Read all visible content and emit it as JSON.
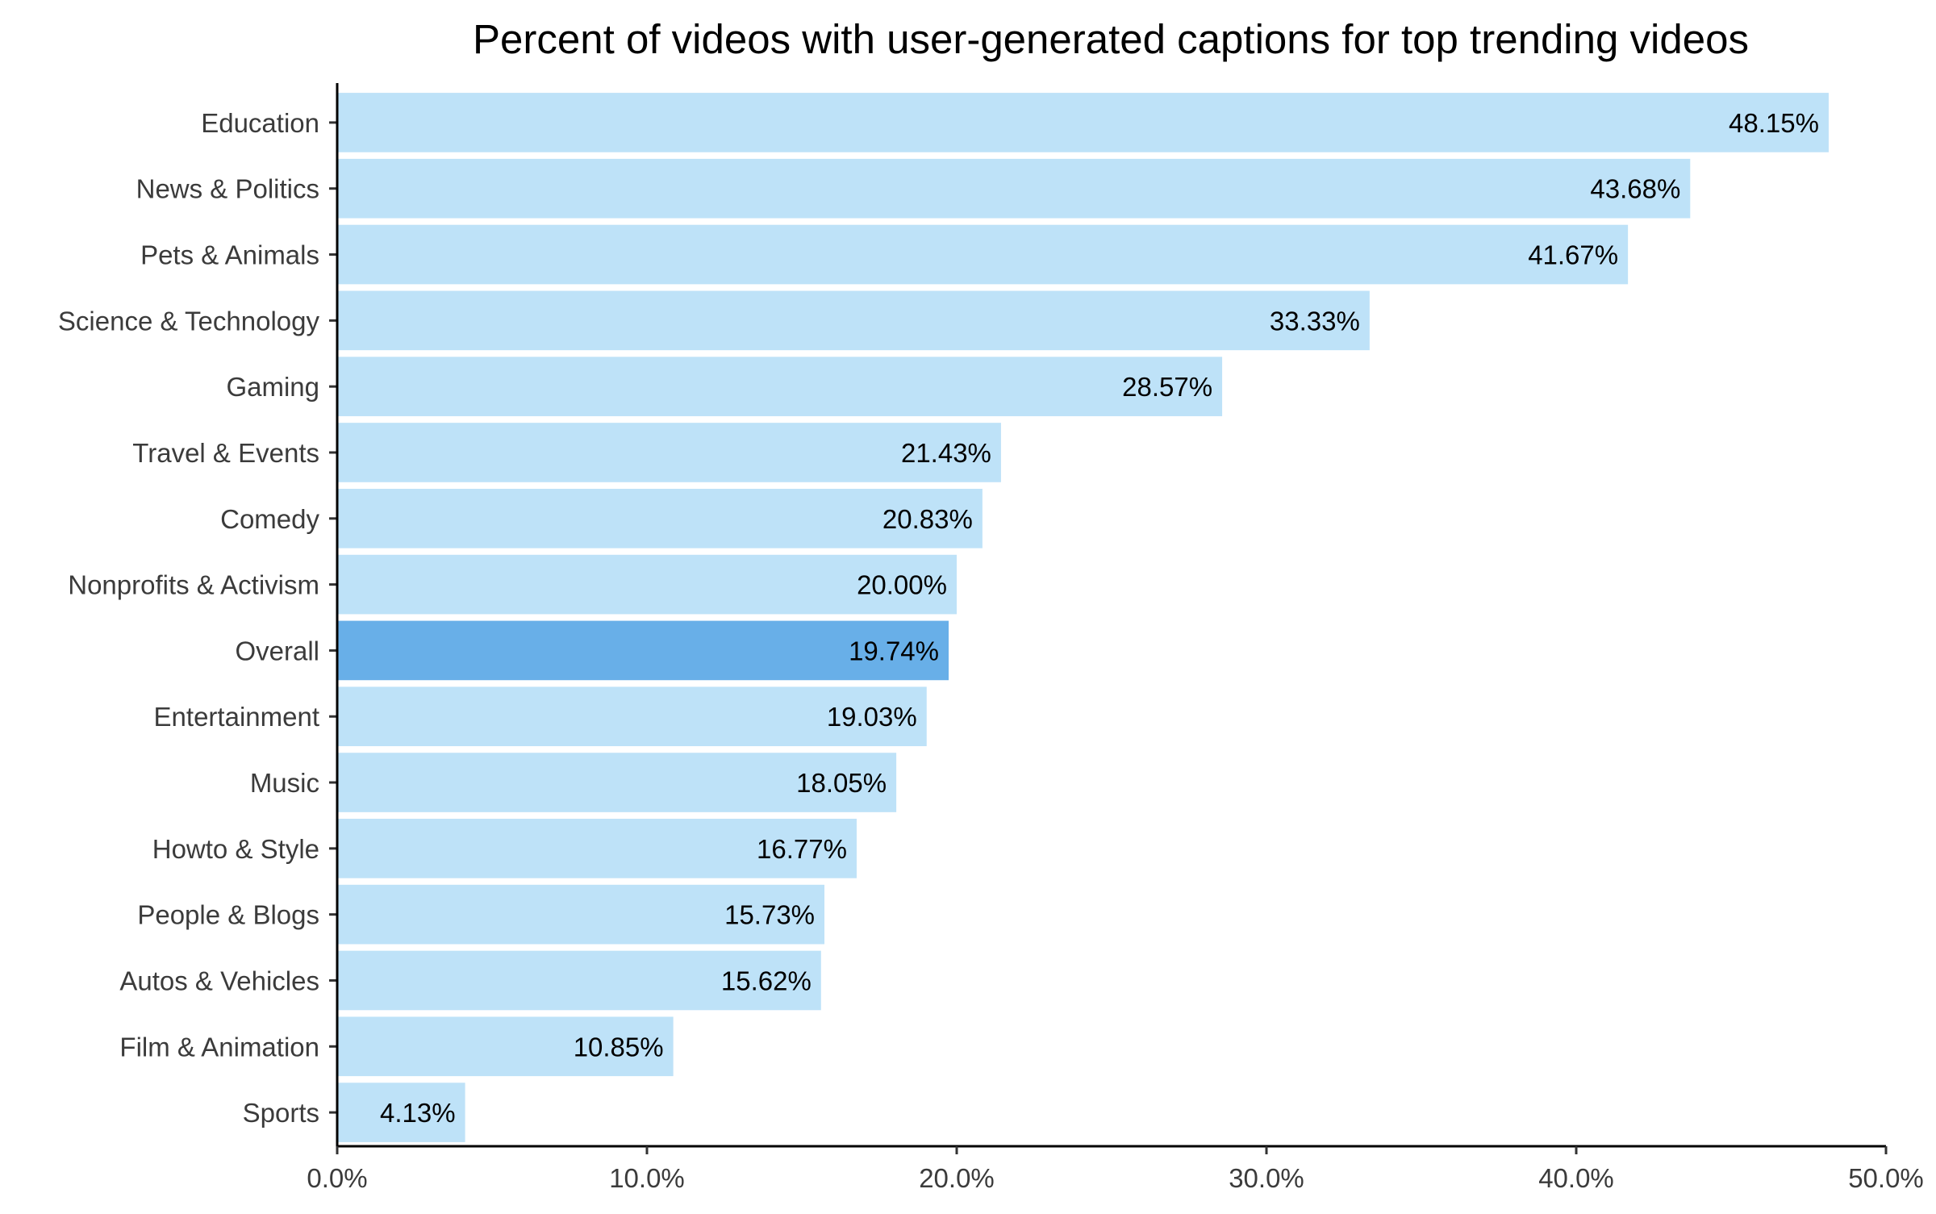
{
  "chart_data": {
    "type": "bar",
    "orientation": "horizontal",
    "title": "Percent of videos with user-generated captions for top trending videos",
    "xlabel": "",
    "ylabel": "",
    "categories": [
      "Education",
      "News & Politics",
      "Pets & Animals",
      "Science & Technology",
      "Gaming",
      "Travel & Events",
      "Comedy",
      "Nonprofits & Activism",
      "Overall",
      "Entertainment",
      "Music",
      "Howto & Style",
      "People & Blogs",
      "Autos & Vehicles",
      "Film & Animation",
      "Sports"
    ],
    "values": [
      48.15,
      43.68,
      41.67,
      33.33,
      28.57,
      21.43,
      20.83,
      20.0,
      19.74,
      19.03,
      18.05,
      16.77,
      15.73,
      15.62,
      10.85,
      4.13
    ],
    "data_labels": [
      "48.15%",
      "43.68%",
      "41.67%",
      "33.33%",
      "28.57%",
      "21.43%",
      "20.83%",
      "20.00%",
      "19.74%",
      "19.03%",
      "18.05%",
      "16.77%",
      "15.73%",
      "15.62%",
      "10.85%",
      "4.13%"
    ],
    "xlim": [
      0,
      50
    ],
    "xticks": [
      0,
      10,
      20,
      30,
      40,
      50
    ],
    "xtick_labels": [
      "0.0%",
      "10.0%",
      "20.0%",
      "30.0%",
      "40.0%",
      "50.0%"
    ],
    "highlight_category": "Overall",
    "grid": false,
    "legend": "none",
    "colors": {
      "bar": "#bee2f8",
      "highlight": "#68afe8",
      "axis": "#000000",
      "label_text": "#3b3b3b"
    }
  }
}
